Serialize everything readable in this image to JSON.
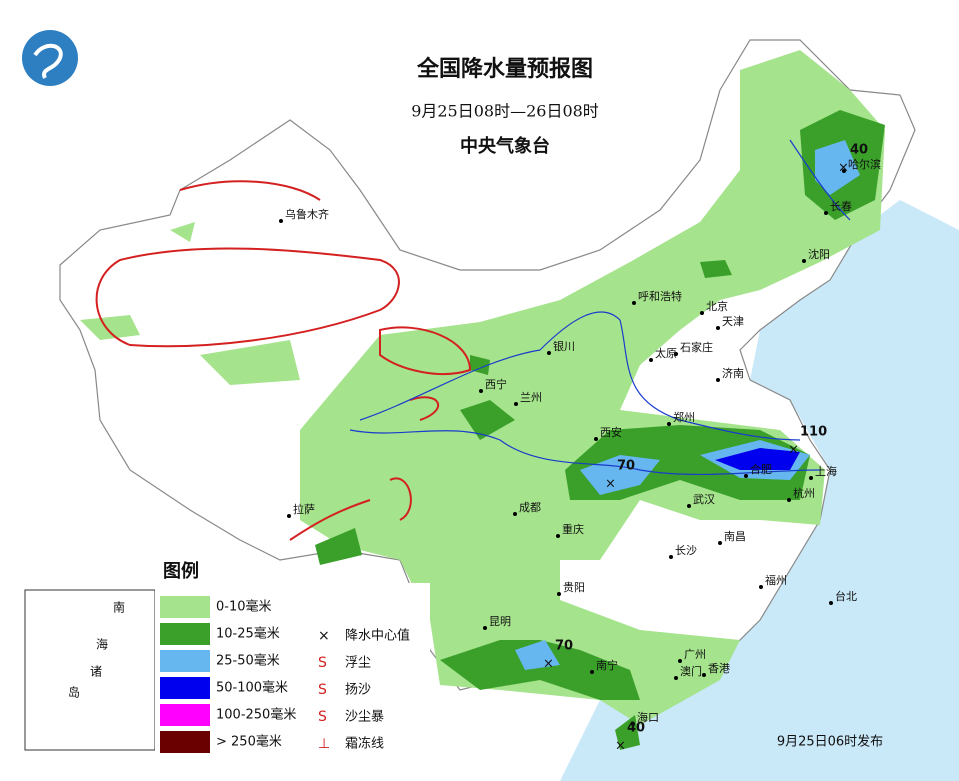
{
  "header": {
    "title": "全国降水量预报图",
    "subtitle": "9月25日08时—26日08时",
    "agency": "中央气象台"
  },
  "cities": [
    "乌鲁木齐",
    "哈尔滨",
    "长春",
    "沈阳",
    "呼和浩特",
    "北京",
    "天津",
    "石家庄",
    "太原",
    "济南",
    "银川",
    "西宁",
    "兰州",
    "西安",
    "郑州",
    "合肥",
    "上海",
    "杭州",
    "武汉",
    "南昌",
    "长沙",
    "成都",
    "重庆",
    "拉萨",
    "贵阳",
    "昆明",
    "南宁",
    "广州",
    "澳门",
    "香港",
    "福州",
    "台北",
    "海口"
  ],
  "rain_centers": [
    40,
    110,
    70,
    70,
    40
  ],
  "legend": {
    "title": "图例",
    "ranges": [
      "0-10毫米",
      "10-25毫米",
      "25-50毫米",
      "50-100毫米",
      "100-250毫米",
      "> 250毫米"
    ],
    "symbols": [
      "降水中心值",
      "浮尘",
      "扬沙",
      "沙尘暴",
      "霜冻线"
    ]
  },
  "inset": [
    "南",
    "海",
    "诸",
    "岛"
  ],
  "footer": "9月25日06时发布"
}
